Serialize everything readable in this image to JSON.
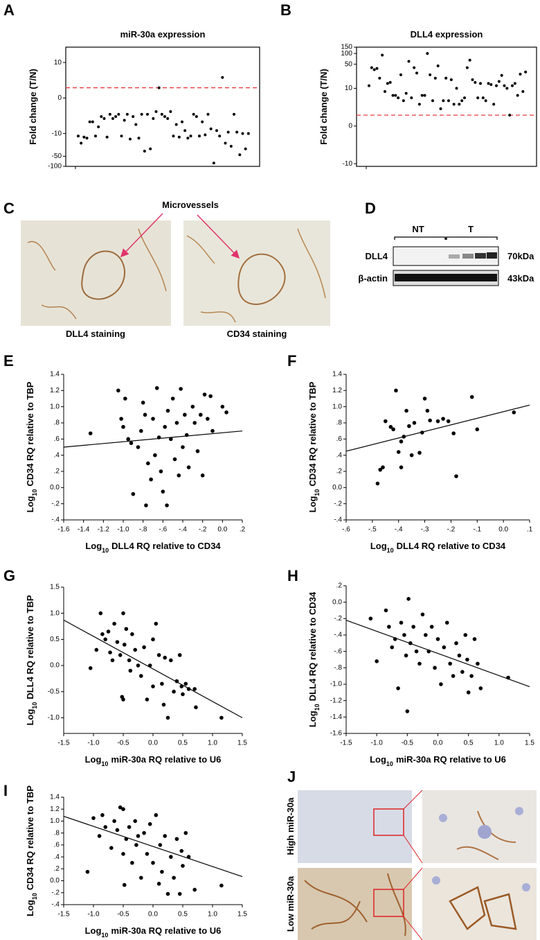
{
  "chart_data": [
    {
      "type": "strip",
      "panel_label": "A",
      "title": "miR-30a expression",
      "ylabel": "Fold change (T/N)",
      "yscale": "symlog",
      "ylim": [
        -100,
        30
      ],
      "yticks": [
        10,
        0,
        -10,
        -50,
        -100
      ],
      "reference_line": 1,
      "reference_color": "#e8383d",
      "color": "#000000",
      "values": [
        -12,
        -20,
        -13,
        -14,
        -4,
        -4,
        -12,
        -6,
        -2.5,
        -3,
        -13,
        -2,
        -3,
        -2.5,
        -2,
        -12,
        -3.5,
        -2,
        -15,
        -2.5,
        -5,
        -14,
        -2,
        -35,
        -2,
        -30,
        -3,
        -1.5,
        1,
        -2,
        -2.5,
        -3,
        -1.5,
        -12,
        -5,
        -13,
        -4,
        -8,
        -14,
        -12,
        -2,
        -2.5,
        -12,
        -4,
        -11,
        -2,
        -7,
        -80,
        -8,
        -12,
        3,
        -20,
        -9,
        -25,
        -2,
        -9,
        -45,
        -10,
        -30,
        -10
      ]
    },
    {
      "type": "strip",
      "panel_label": "B",
      "title": "DLL4 expression",
      "ylabel": "Fold change (T/N)",
      "yscale": "symlog",
      "ylim": [
        -12,
        150
      ],
      "yticks": [
        150,
        100,
        50,
        10,
        0,
        -10
      ],
      "reference_line": 1,
      "reference_color": "#e8383d",
      "color": "#000000",
      "values": [
        12,
        40,
        35,
        38,
        20,
        90,
        8,
        14,
        15,
        6,
        6,
        5,
        25,
        4,
        7,
        60,
        5,
        40,
        28,
        3,
        6,
        6,
        100,
        25,
        4,
        20,
        45,
        2,
        4,
        20,
        4,
        18,
        3,
        10,
        3,
        4,
        5,
        40,
        65,
        18,
        15,
        5,
        14,
        5,
        4,
        14,
        13,
        3,
        12,
        16,
        24,
        12,
        10,
        1,
        12,
        14,
        6,
        26,
        8,
        30
      ]
    },
    {
      "type": "scatter",
      "panel_label": "E",
      "xlabel": [
        "Log",
        "10",
        "DLL4 RQ relative  to CD34"
      ],
      "ylabel": [
        "Log",
        "10",
        "CD34 RQ relative  to TBP"
      ],
      "color": "#000000",
      "xlim": [
        -1.6,
        0.2
      ],
      "ylim": [
        -0.4,
        1.4
      ],
      "xticks": [
        -1.6,
        -1.4,
        -1.2,
        {
          "value": -1.0,
          "label": "-1.0"
        },
        {
          "value": -0.8,
          "label": "-.8"
        },
        {
          "value": -0.6,
          "label": "-.6"
        },
        {
          "value": -0.4,
          "label": "-.4"
        },
        {
          "value": -0.2,
          "label": "-.2"
        },
        {
          "value": 0,
          "label": "0.0"
        },
        {
          "value": 0.2,
          "label": ".2"
        }
      ],
      "yticks": [
        {
          "value": -0.4,
          "label": "-.4"
        },
        {
          "value": -0.2,
          "label": "-.2"
        },
        {
          "value": 0,
          "label": "0.0"
        },
        {
          "value": 0.2,
          "label": ".2"
        },
        {
          "value": 0.4,
          "label": ".4"
        },
        {
          "value": 0.6,
          "label": ".6"
        },
        {
          "value": 0.8,
          "label": ".8"
        },
        {
          "value": 1.0,
          "label": "1.0"
        },
        1.2,
        1.4
      ],
      "x": [
        -1.33,
        -1.05,
        -1.02,
        -1.0,
        -0.98,
        -0.95,
        -0.92,
        -0.9,
        -0.85,
        -0.82,
        -0.8,
        -0.78,
        -0.77,
        -0.75,
        -0.72,
        -0.7,
        -0.68,
        -0.66,
        -0.64,
        -0.62,
        -0.6,
        -0.58,
        -0.56,
        -0.55,
        -0.52,
        -0.5,
        -0.48,
        -0.46,
        -0.44,
        -0.42,
        -0.4,
        -0.38,
        -0.36,
        -0.34,
        -0.3,
        -0.28,
        -0.25,
        -0.22,
        -0.2,
        -0.18,
        -0.15,
        -0.12,
        -0.1,
        0.0,
        0.04
      ],
      "values": [
        0.67,
        1.2,
        0.85,
        0.75,
        1.1,
        0.6,
        0.55,
        -0.08,
        0.5,
        0.7,
        1.05,
        0.9,
        -0.22,
        0.3,
        0.1,
        0.85,
        0.4,
        1.23,
        0.62,
        0.2,
        -0.05,
        0.75,
        -0.22,
        0.95,
        0.6,
        1.1,
        0.35,
        0.8,
        0.15,
        1.22,
        0.5,
        0.9,
        0.65,
        0.25,
        1.0,
        0.8,
        0.45,
        0.9,
        0.15,
        1.15,
        0.85,
        1.13,
        0.7,
        1.0,
        0.93
      ],
      "trendline": {
        "x": [
          -1.6,
          0.2
        ],
        "values": [
          0.5,
          0.7
        ]
      }
    },
    {
      "type": "scatter",
      "panel_label": "F",
      "xlabel": [
        "Log",
        "10",
        "DLL4 RQ relative  to CD34"
      ],
      "ylabel": [
        "Log",
        "10",
        "CD34 RQ relative  to TBP"
      ],
      "color": "#000000",
      "xlim": [
        -0.6,
        0.1
      ],
      "ylim": [
        -0.4,
        1.4
      ],
      "xticks": [
        {
          "value": -0.6,
          "label": "-.6"
        },
        {
          "value": -0.5,
          "label": "-.5"
        },
        {
          "value": -0.4,
          "label": "-.4"
        },
        {
          "value": -0.3,
          "label": "-.3"
        },
        {
          "value": -0.2,
          "label": "-.2"
        },
        {
          "value": -0.1,
          "label": "-.1"
        },
        {
          "value": 0,
          "label": "0.0"
        },
        {
          "value": 0.1,
          "label": ".1"
        }
      ],
      "yticks": [
        {
          "value": -0.4,
          "label": "-.4"
        },
        {
          "value": -0.2,
          "label": "-.2"
        },
        {
          "value": 0,
          "label": "0.0"
        },
        {
          "value": 0.2,
          "label": ".2"
        },
        {
          "value": 0.4,
          "label": ".4"
        },
        {
          "value": 0.6,
          "label": ".6"
        },
        {
          "value": 0.8,
          "label": ".8"
        },
        {
          "value": 1.0,
          "label": "1.0"
        },
        1.2,
        1.4
      ],
      "x": [
        -0.48,
        -0.47,
        -0.46,
        -0.45,
        -0.43,
        -0.42,
        -0.41,
        -0.4,
        -0.39,
        -0.39,
        -0.38,
        -0.37,
        -0.36,
        -0.35,
        -0.34,
        -0.32,
        -0.31,
        -0.3,
        -0.29,
        -0.28,
        -0.25,
        -0.23,
        -0.21,
        -0.19,
        -0.18,
        -0.12,
        -0.1,
        0.04
      ],
      "values": [
        0.05,
        0.22,
        0.25,
        0.82,
        0.75,
        0.72,
        1.2,
        0.44,
        0.25,
        0.57,
        0.63,
        0.95,
        0.76,
        0.4,
        0.8,
        0.43,
        0.68,
        1.1,
        0.95,
        0.83,
        0.82,
        0.85,
        0.82,
        0.67,
        0.14,
        1.12,
        0.72,
        0.93
      ],
      "trendline": {
        "x": [
          -0.6,
          0.1
        ],
        "values": [
          0.45,
          1.02
        ]
      }
    },
    {
      "type": "scatter",
      "panel_label": "G",
      "xlabel": [
        "Log",
        "10",
        "miR-30a RQ relative  to U6"
      ],
      "ylabel": [
        "Log",
        "10",
        "DLL4 RQ relative  to TBP"
      ],
      "color": "#000000",
      "xlim": [
        -1.5,
        1.5
      ],
      "ylim": [
        -1.3,
        1.5
      ],
      "xticks": [
        -1.5,
        {
          "value": -1.0,
          "label": "-1.0"
        },
        -0.5,
        {
          "value": 0,
          "label": "0.0"
        },
        0.5,
        {
          "value": 1.0,
          "label": "1.0"
        },
        1.5
      ],
      "yticks": [
        {
          "value": -1.0,
          "label": "-1.0"
        },
        -0.5,
        {
          "value": 0,
          "label": "0.0"
        },
        0.5,
        {
          "value": 1.0,
          "label": "1.0"
        },
        1.5
      ],
      "x": [
        -1.05,
        -0.95,
        -0.88,
        -0.85,
        -0.8,
        -0.75,
        -0.72,
        -0.68,
        -0.65,
        -0.6,
        -0.55,
        -0.52,
        -0.5,
        -0.5,
        -0.48,
        -0.45,
        -0.4,
        -0.38,
        -0.35,
        -0.3,
        -0.25,
        -0.2,
        -0.15,
        -0.1,
        -0.05,
        0.0,
        0.0,
        0.05,
        0.1,
        0.15,
        0.18,
        0.2,
        0.25,
        0.3,
        0.35,
        0.4,
        0.45,
        0.48,
        0.5,
        0.55,
        0.6,
        0.7,
        0.72,
        1.15
      ],
      "values": [
        -0.05,
        0.3,
        1.0,
        0.6,
        0.5,
        0.65,
        0.25,
        0.1,
        0.8,
        0.45,
        0.2,
        -0.6,
        -0.65,
        1.0,
        0.4,
        0.7,
        0.1,
        -0.1,
        0.6,
        0.3,
        0.0,
        -0.2,
        0.35,
        -0.65,
        0.0,
        0.5,
        -0.4,
        0.8,
        0.2,
        -0.35,
        -0.75,
        0.15,
        -1.0,
        0.1,
        -0.5,
        -0.3,
        0.2,
        -0.4,
        -0.55,
        -0.35,
        -0.45,
        -0.45,
        -0.8,
        -1.0
      ],
      "trendline": {
        "x": [
          -1.5,
          1.5
        ],
        "values": [
          0.87,
          -1.0
        ]
      }
    },
    {
      "type": "scatter",
      "panel_label": "H",
      "xlabel": [
        "Log",
        "10",
        "miR-30a RQ relative  to U6"
      ],
      "ylabel": [
        "Log",
        "10",
        "DLL4 RQ relative  to CD34"
      ],
      "color": "#000000",
      "xlim": [
        -1.5,
        1.5
      ],
      "ylim": [
        -1.6,
        0.2
      ],
      "xticks": [
        -1.5,
        {
          "value": -1.0,
          "label": "-1.0"
        },
        -0.5,
        {
          "value": 0,
          "label": "0.0"
        },
        0.5,
        {
          "value": 1.0,
          "label": "1.0"
        },
        1.5
      ],
      "yticks": [
        -1.6,
        -1.4,
        -1.2,
        {
          "value": -1.0,
          "label": "-1.0"
        },
        {
          "value": -0.8,
          "label": "-.8"
        },
        {
          "value": -0.6,
          "label": "-.6"
        },
        {
          "value": -0.4,
          "label": "-.4"
        },
        {
          "value": -0.2,
          "label": "-.2"
        },
        {
          "value": 0,
          "label": "0.0"
        },
        {
          "value": 0.2,
          "label": ".2"
        }
      ],
      "x": [
        -1.1,
        -1.0,
        -0.85,
        -0.8,
        -0.75,
        -0.7,
        -0.65,
        -0.6,
        -0.55,
        -0.52,
        -0.5,
        -0.48,
        -0.45,
        -0.4,
        -0.35,
        -0.3,
        -0.25,
        -0.2,
        -0.15,
        -0.1,
        -0.05,
        0.0,
        0.05,
        0.1,
        0.15,
        0.2,
        0.25,
        0.3,
        0.35,
        0.4,
        0.45,
        0.48,
        0.5,
        0.55,
        0.6,
        0.65,
        0.7,
        1.15
      ],
      "values": [
        -0.2,
        -0.72,
        -0.1,
        -0.3,
        -0.55,
        -0.45,
        -1.05,
        -0.25,
        -0.4,
        -0.65,
        -1.33,
        0.04,
        -0.5,
        -0.3,
        -0.6,
        -0.75,
        -0.15,
        -0.4,
        -0.6,
        -0.3,
        -0.8,
        -0.45,
        -1.0,
        -0.55,
        -0.25,
        -0.75,
        -0.9,
        -0.5,
        -0.65,
        -0.85,
        -0.4,
        -0.7,
        -1.1,
        -0.9,
        -0.45,
        -0.75,
        -1.05,
        -0.92
      ],
      "trendline": {
        "x": [
          -1.5,
          1.5
        ],
        "values": [
          -0.22,
          -1.03
        ]
      }
    },
    {
      "type": "scatter",
      "panel_label": "I",
      "xlabel": [
        "Log",
        "10",
        "miR-30a RQ relative  to U6"
      ],
      "ylabel": [
        "Log",
        "10",
        "CD34 RQ relative  to TBP"
      ],
      "color": "#000000",
      "xlim": [
        -1.5,
        1.5
      ],
      "ylim": [
        -0.4,
        1.4
      ],
      "xticks": [
        -1.5,
        {
          "value": -1.0,
          "label": "-1.0"
        },
        -0.5,
        {
          "value": 0,
          "label": "0.0"
        },
        0.5,
        {
          "value": 1.0,
          "label": "1.0"
        },
        1.5
      ],
      "yticks": [
        {
          "value": -0.4,
          "label": "-.4"
        },
        {
          "value": -0.2,
          "label": "-.2"
        },
        {
          "value": 0,
          "label": "0.0"
        },
        {
          "value": 0.2,
          "label": ".2"
        },
        {
          "value": 0.4,
          "label": ".4"
        },
        {
          "value": 0.6,
          "label": ".6"
        },
        {
          "value": 0.8,
          "label": ".8"
        },
        {
          "value": 1.0,
          "label": "1.0"
        },
        1.2,
        1.4
      ],
      "x": [
        -1.1,
        -1.0,
        -0.9,
        -0.85,
        -0.8,
        -0.7,
        -0.65,
        -0.6,
        -0.55,
        -0.5,
        -0.5,
        -0.48,
        -0.45,
        -0.4,
        -0.35,
        -0.3,
        -0.28,
        -0.25,
        -0.2,
        -0.15,
        -0.1,
        -0.05,
        0.0,
        0.05,
        0.1,
        0.12,
        0.15,
        0.2,
        0.25,
        0.3,
        0.35,
        0.4,
        0.45,
        0.48,
        0.5,
        0.55,
        0.6,
        0.7,
        1.15
      ],
      "values": [
        0.15,
        1.05,
        0.75,
        1.1,
        0.9,
        0.55,
        1.0,
        0.85,
        1.23,
        0.45,
        1.2,
        -0.07,
        0.7,
        0.9,
        0.3,
        1.0,
        0.6,
        0.75,
        0.05,
        0.8,
        0.45,
        0.95,
        0.3,
        1.1,
        -0.05,
        0.6,
        0.15,
        0.75,
        -0.22,
        0.4,
        0.05,
        0.7,
        -0.22,
        0.5,
        0.25,
        0.8,
        0.4,
        -0.15,
        -0.08
      ],
      "trendline": {
        "x": [
          -1.5,
          1.5
        ],
        "values": [
          1.08,
          0.07
        ]
      }
    }
  ],
  "panels": {
    "c": {
      "label": "C",
      "arrow_label": "Microvessels",
      "captions": [
        "DLL4 staining",
        "CD34 staining"
      ]
    },
    "d": {
      "label": "D",
      "groups": [
        "NT",
        "T"
      ],
      "rows": [
        "DLL4",
        "β-actin"
      ],
      "sizes": [
        "70kDa",
        "43kDa"
      ]
    },
    "j": {
      "label": "J",
      "rows": [
        "High miR-30a",
        "Low miR-30a"
      ]
    }
  }
}
